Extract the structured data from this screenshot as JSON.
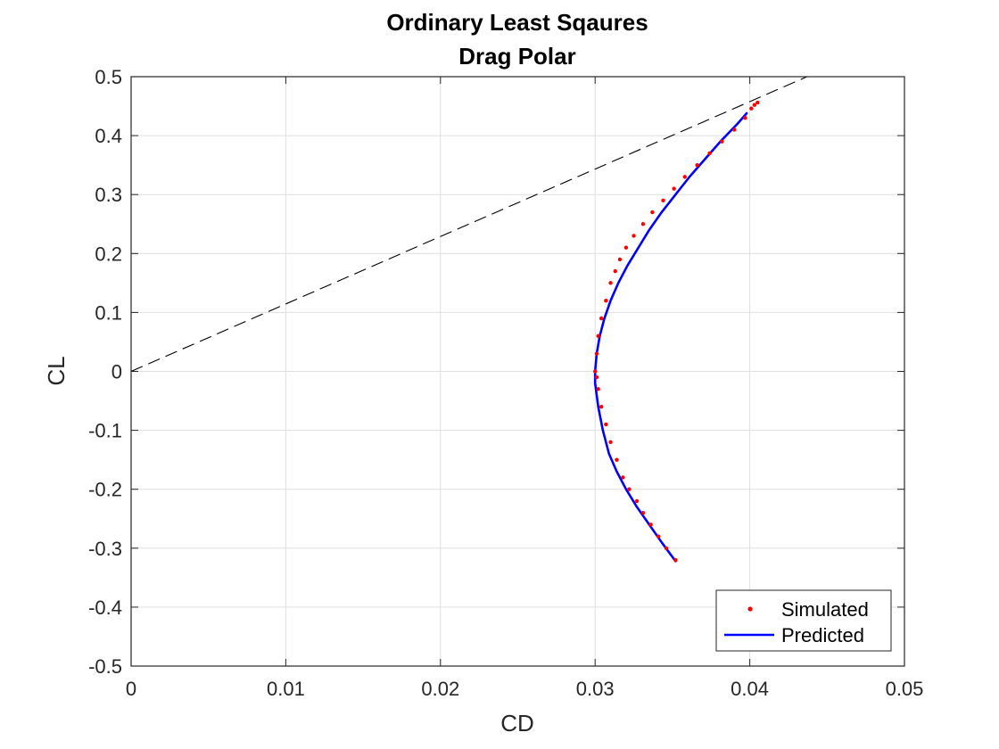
{
  "chart_data": {
    "type": "line",
    "title": [
      "Ordinary Least Sqaures",
      "Drag Polar"
    ],
    "xlabel": "CD",
    "ylabel": "CL",
    "xlim": [
      0,
      0.05
    ],
    "ylim": [
      -0.5,
      0.5
    ],
    "xticks": [
      0,
      0.01,
      0.02,
      0.03,
      0.04,
      0.05
    ],
    "xtick_labels": [
      "0",
      "0.01",
      "0.02",
      "0.03",
      "0.04",
      "0.05"
    ],
    "yticks": [
      -0.5,
      -0.4,
      -0.3,
      -0.2,
      -0.1,
      0,
      0.1,
      0.2,
      0.3,
      0.4,
      0.5
    ],
    "ytick_labels": [
      "-0.5",
      "-0.4",
      "-0.3",
      "-0.2",
      "-0.1",
      "0",
      "0.1",
      "0.2",
      "0.3",
      "0.4",
      "0.5"
    ],
    "grid": true,
    "legend_position": "bottom-right",
    "series": [
      {
        "name": "Simulated",
        "style": "markers",
        "color": "#ff0000",
        "x": [
          0.0352,
          0.0346,
          0.0341,
          0.0336,
          0.0331,
          0.0327,
          0.0322,
          0.0318,
          0.0314,
          0.031,
          0.0307,
          0.0304,
          0.0302,
          0.0301,
          0.03,
          0.0301,
          0.0302,
          0.0304,
          0.0307,
          0.031,
          0.0313,
          0.0316,
          0.032,
          0.0325,
          0.0331,
          0.0337,
          0.0344,
          0.0351,
          0.0358,
          0.0366,
          0.0374,
          0.0382,
          0.039,
          0.0397,
          0.0401,
          0.0403,
          0.0405
        ],
        "y": [
          -0.32,
          -0.3,
          -0.28,
          -0.26,
          -0.24,
          -0.22,
          -0.2,
          -0.18,
          -0.15,
          -0.12,
          -0.09,
          -0.06,
          -0.03,
          -0.01,
          0.0,
          0.03,
          0.06,
          0.09,
          0.12,
          0.15,
          0.17,
          0.19,
          0.21,
          0.23,
          0.25,
          0.27,
          0.29,
          0.31,
          0.33,
          0.35,
          0.37,
          0.39,
          0.41,
          0.43,
          0.446,
          0.452,
          0.456
        ]
      },
      {
        "name": "Predicted",
        "style": "line",
        "color": "#0000ff",
        "x": [
          0.0352,
          0.0343,
          0.0335,
          0.0327,
          0.032,
          0.0314,
          0.0309,
          0.0305,
          0.0302,
          0.03,
          0.03,
          0.0301,
          0.0303,
          0.0306,
          0.031,
          0.0315,
          0.0321,
          0.0328,
          0.0335,
          0.0343,
          0.0352,
          0.0361,
          0.0371,
          0.0381,
          0.0392,
          0.0398
        ],
        "y": [
          -0.322,
          -0.29,
          -0.26,
          -0.23,
          -0.2,
          -0.17,
          -0.14,
          -0.1,
          -0.06,
          -0.02,
          0.0,
          0.03,
          0.06,
          0.09,
          0.12,
          0.15,
          0.18,
          0.21,
          0.24,
          0.27,
          0.3,
          0.33,
          0.36,
          0.39,
          0.42,
          0.438
        ]
      },
      {
        "style": "dashed-line",
        "color": "#000000",
        "x": [
          0,
          0.0437
        ],
        "y": [
          0,
          0.5
        ]
      }
    ]
  }
}
